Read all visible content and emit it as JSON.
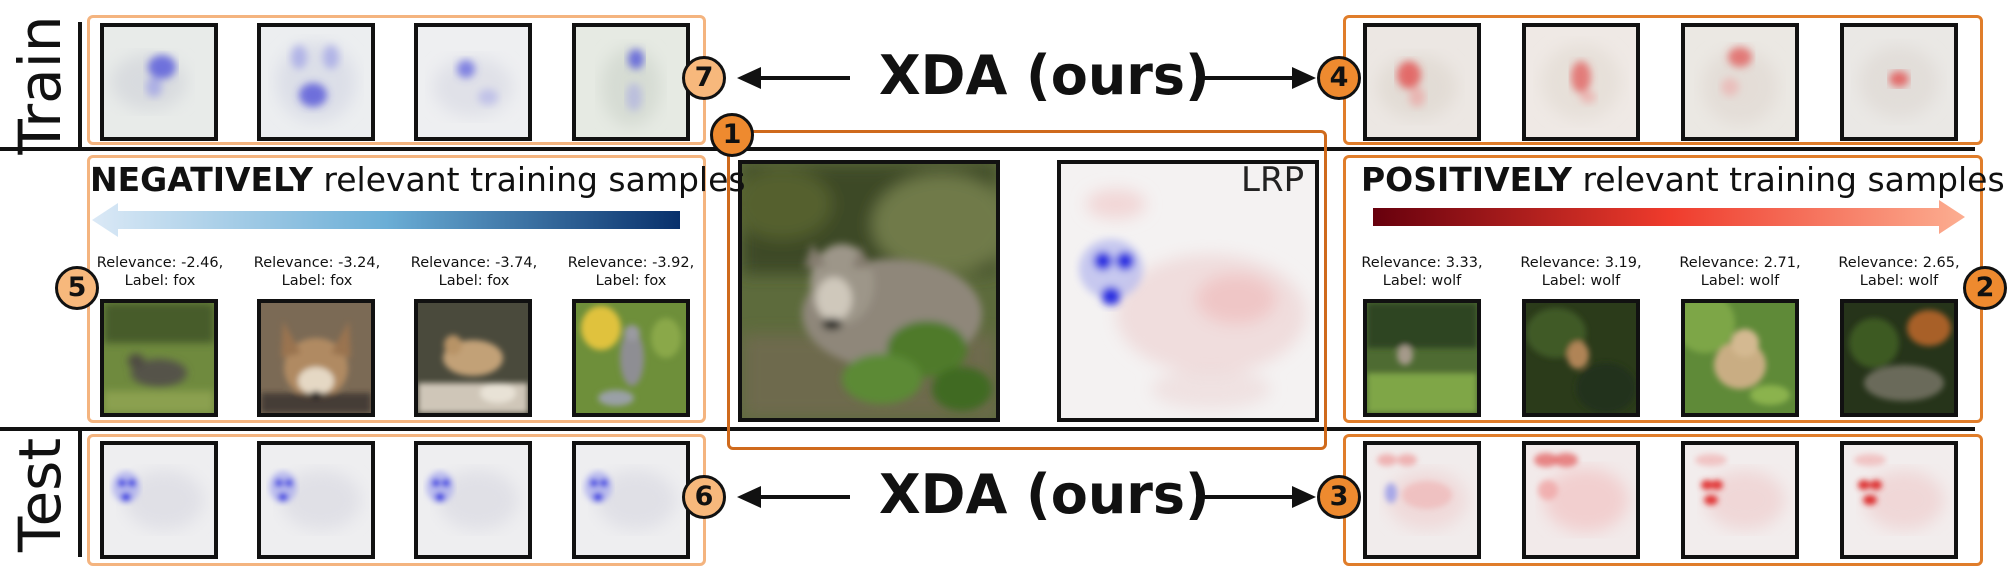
{
  "rows": {
    "train": "Train",
    "test": "Test"
  },
  "method_label": "XDA (ours)",
  "lrp_label": "LRP",
  "badges": [
    "1",
    "2",
    "3",
    "4",
    "5",
    "6",
    "7"
  ],
  "negative": {
    "bold": "NEGATIVELY",
    "rest": " relevant training samples",
    "samples": [
      {
        "relevance": "Relevance: -2.46,",
        "label": "Label: fox"
      },
      {
        "relevance": "Relevance: -3.24,",
        "label": "Label: fox"
      },
      {
        "relevance": "Relevance: -3.74,",
        "label": "Label: fox"
      },
      {
        "relevance": "Relevance: -3.92,",
        "label": "Label: fox"
      }
    ]
  },
  "positive": {
    "bold": "POSITIVELY",
    "rest": " relevant training samples",
    "samples": [
      {
        "relevance": "Relevance: 3.33,",
        "label": "Label: wolf"
      },
      {
        "relevance": "Relevance: 3.19,",
        "label": "Label: wolf"
      },
      {
        "relevance": "Relevance: 2.71,",
        "label": "Label: wolf"
      },
      {
        "relevance": "Relevance: 2.65,",
        "label": "Label: wolf"
      }
    ]
  },
  "colors": {
    "negative_gradient": [
      "#dbe9f6",
      "#6baed6",
      "#08306b"
    ],
    "positive_gradient": [
      "#67000d",
      "#ef3b2c",
      "#fcae91"
    ],
    "badge_light": "#f7b87c",
    "badge_dark": "#ee8a2f",
    "box_light": "#f4b47f",
    "box_dark": "#e07d2a"
  }
}
